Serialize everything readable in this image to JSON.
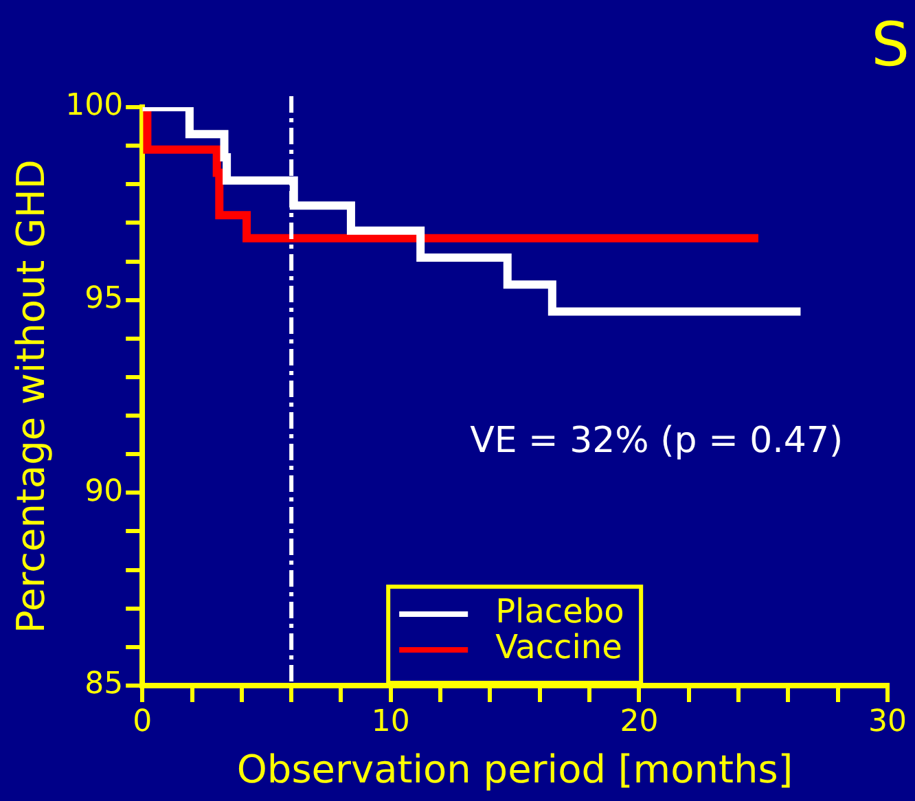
{
  "chart_data": {
    "type": "step",
    "title": "S",
    "xlabel": "Observation period [months]",
    "ylabel": "Percentage without GHD",
    "series": [
      {
        "name": "Placebo",
        "color": "#ffffff",
        "x": [
          0,
          1.9,
          3.3,
          3.4,
          6.1,
          8.4,
          11.2,
          14.7,
          16.5,
          26.5
        ],
        "values": [
          100,
          99.3,
          98.7,
          98.1,
          97.45,
          96.8,
          96.1,
          95.4,
          94.7,
          94.7
        ]
      },
      {
        "name": "Vaccine",
        "color": "#ff0000",
        "x": [
          0,
          0.2,
          3.0,
          3.1,
          4.2,
          24.8
        ],
        "values": [
          100,
          98.9,
          98.3,
          97.2,
          96.6,
          96.6
        ]
      }
    ],
    "xlim": [
      0,
      30
    ],
    "xticks": [
      0,
      {
        "value": 2,
        "label": null
      },
      {
        "value": 4,
        "label": null
      },
      {
        "value": 6,
        "label": null
      },
      {
        "value": 8,
        "label": null
      },
      10,
      {
        "value": 12,
        "label": null
      },
      {
        "value": 14,
        "label": null
      },
      {
        "value": 16,
        "label": null
      },
      {
        "value": 18,
        "label": null
      },
      20,
      {
        "value": 22,
        "label": null
      },
      {
        "value": 24,
        "label": null
      },
      {
        "value": 26,
        "label": null
      },
      {
        "value": 28,
        "label": null
      },
      30
    ],
    "ylim": [
      85,
      100
    ],
    "yticks": [
      85,
      {
        "value": 86,
        "label": null
      },
      {
        "value": 87,
        "label": null
      },
      {
        "value": 88,
        "label": null
      },
      {
        "value": 89,
        "label": null
      },
      90,
      {
        "value": 91,
        "label": null
      },
      {
        "value": 92,
        "label": null
      },
      {
        "value": 93,
        "label": null
      },
      {
        "value": 94,
        "label": null
      },
      95,
      {
        "value": 96,
        "label": null
      },
      {
        "value": 97,
        "label": null
      },
      {
        "value": 98,
        "label": null
      },
      {
        "value": 99,
        "label": null
      },
      100
    ],
    "ref_lines": [
      {
        "axis": "x",
        "value": 6,
        "color": "#ffffff",
        "line_style": "dashed"
      }
    ],
    "annotations": [
      "VE = 32% (p = 0.47)"
    ],
    "legend": "bottom",
    "grid": false
  }
}
